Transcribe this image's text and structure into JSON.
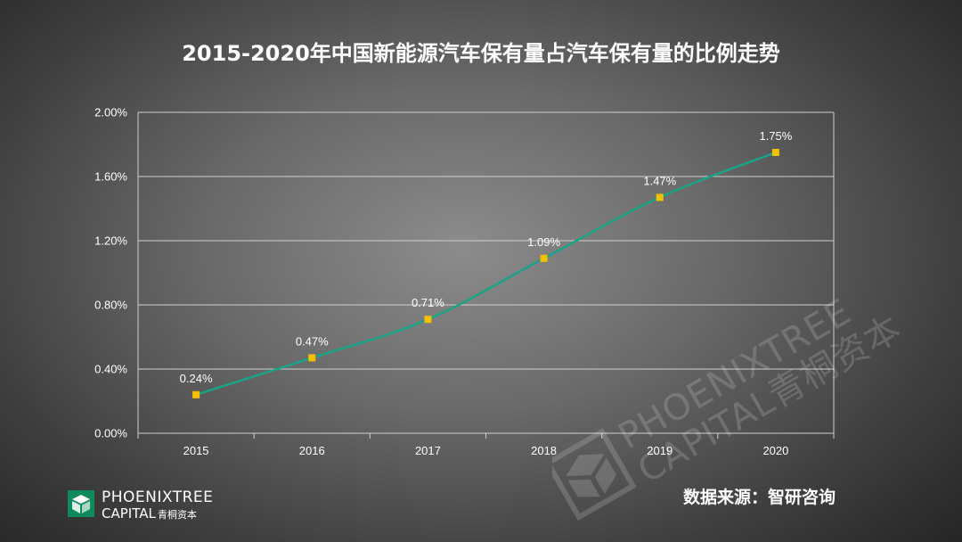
{
  "title": "2015-2020年中国新能源汽车保有量占汽车保有量的比例走势",
  "source_text": "数据来源：智研咨询",
  "logo": {
    "line1": "PHOENIXTREE",
    "line2": "CAPITAL",
    "line2_cn": "青桐资本"
  },
  "watermark": {
    "line1": "PHOENIXTREE",
    "line2": "CAPITAL青桐资本"
  },
  "colors": {
    "line": "#1aa387",
    "marker": "#f5c000",
    "grid": "#cfcfcf",
    "text": "#ffffff",
    "logo": "#0e8a5c"
  },
  "chart_data": {
    "type": "line",
    "title": "2015-2020年中国新能源汽车保有量占汽车保有量的比例走势",
    "categories": [
      "2015",
      "2016",
      "2017",
      "2018",
      "2019",
      "2020"
    ],
    "values": [
      0.24,
      0.47,
      0.71,
      1.09,
      1.47,
      1.75
    ],
    "data_labels": [
      "0.24%",
      "0.47%",
      "0.71%",
      "1.09%",
      "1.47%",
      "1.75%"
    ],
    "yticks": [
      "0.00%",
      "0.40%",
      "0.80%",
      "1.20%",
      "1.60%",
      "2.00%"
    ],
    "ylim": [
      0,
      2.0
    ],
    "ytick_step": 0.4,
    "grid": true,
    "legend": "none",
    "xlabel": "",
    "ylabel": ""
  }
}
